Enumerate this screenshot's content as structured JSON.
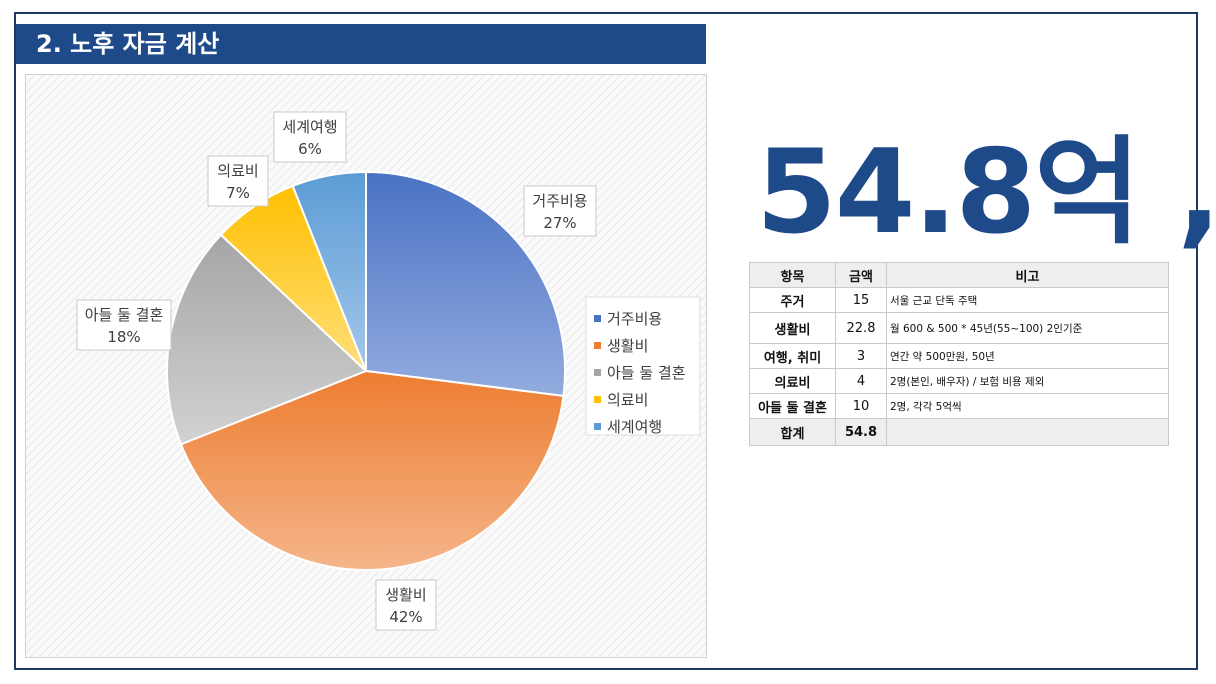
{
  "header": {
    "title": "2. 노후 자금 계산"
  },
  "summary": {
    "total_text": "54.8억 ,"
  },
  "table": {
    "headers": [
      "항목",
      "금액",
      "비고"
    ],
    "rows": [
      {
        "item": "주거",
        "amount": "15",
        "note": "서울 근교 단독 주택"
      },
      {
        "item": "생활비",
        "amount": "22.8",
        "note": "월 600 & 500 * 45년(55~100) 2인기준"
      },
      {
        "item": "여행, 취미",
        "amount": "3",
        "note": "연간 약 500만원, 50년"
      },
      {
        "item": "의료비",
        "amount": "4",
        "note": "2명(본인, 배우자) / 보험 비용 제외"
      },
      {
        "item": "아들 둘 결혼",
        "amount": "10",
        "note": "2명, 각각 5억씩"
      }
    ],
    "total": {
      "item": "합계",
      "amount": "54.8",
      "note": ""
    }
  },
  "chart_data": {
    "type": "pie",
    "categories": [
      "거주비용",
      "생활비",
      "아들 둘 결혼",
      "의료비",
      "세계여행"
    ],
    "values": [
      27,
      42,
      18,
      7,
      6
    ],
    "labels": [
      "27%",
      "42%",
      "18%",
      "7%",
      "6%"
    ],
    "colors": [
      "#4a72c4",
      "#ed7d31",
      "#a5a5a5",
      "#ffc000",
      "#5b9bd5"
    ],
    "colors_light": [
      "#93acdf",
      "#f5b58a",
      "#d2d2d2",
      "#ffdf7a",
      "#a5c8ea"
    ],
    "start_angle_deg": 0,
    "direction": "clockwise",
    "legend": "right",
    "title": ""
  }
}
